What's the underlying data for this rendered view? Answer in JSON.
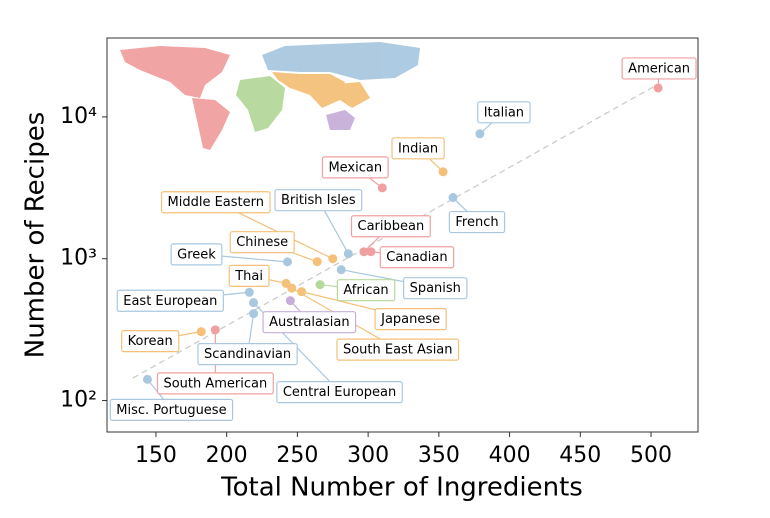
{
  "chart_data": {
    "type": "scatter",
    "x_label": "Total Number of Ingredients",
    "y_label": "Number of Recipes",
    "xlim": [
      115.4,
      533.2
    ],
    "xticks": [
      150,
      200,
      250,
      300,
      350,
      400,
      450,
      500
    ],
    "ylim": [
      60,
      36000
    ],
    "log_y": true,
    "yticks": [
      {
        "value": 100,
        "label": "10²"
      },
      {
        "value": 1000,
        "label": "10³"
      },
      {
        "value": 10000,
        "label": "10⁴"
      }
    ],
    "points": [
      {
        "label": "American",
        "x": 505,
        "y": 16000,
        "color": "#f0a0a0"
      },
      {
        "label": "Italian",
        "x": 379,
        "y": 7600,
        "color": "#a9c8e0"
      },
      {
        "label": "Indian",
        "x": 353,
        "y": 4100,
        "color": "#f4c07a"
      },
      {
        "label": "Mexican",
        "x": 310,
        "y": 3160,
        "color": "#f0a0a0"
      },
      {
        "label": "French",
        "x": 360,
        "y": 2700,
        "color": "#a9c8e0"
      },
      {
        "label": "British Isles",
        "x": 286,
        "y": 1085,
        "color": "#a9c8e0"
      },
      {
        "label": "Caribbean",
        "x": 297,
        "y": 1120,
        "color": "#f0a0a0"
      },
      {
        "label": "Canadian",
        "x": 302,
        "y": 1120,
        "color": "#f0a0a0"
      },
      {
        "label": "Middle Eastern",
        "x": 275,
        "y": 1000,
        "color": "#f4c07a"
      },
      {
        "label": "Chinese",
        "x": 264,
        "y": 953,
        "color": "#f4c07a"
      },
      {
        "label": "Greek",
        "x": 243,
        "y": 950,
        "color": "#a9c8e0"
      },
      {
        "label": "Spanish",
        "x": 281,
        "y": 837,
        "color": "#a9c8e0"
      },
      {
        "label": "African",
        "x": 266,
        "y": 656,
        "color": "#b5d99c"
      },
      {
        "label": "Thai",
        "x": 242,
        "y": 670,
        "color": "#f4c07a"
      },
      {
        "label": "Japanese",
        "x": 253,
        "y": 586,
        "color": "#f4c07a"
      },
      {
        "label": "South East Asian",
        "x": 246,
        "y": 620,
        "color": "#f4c07a"
      },
      {
        "label": "East European",
        "x": 216,
        "y": 580,
        "color": "#a9c8e0"
      },
      {
        "label": "Australasian",
        "x": 245,
        "y": 506,
        "color": "#c7afd9"
      },
      {
        "label": "Central European",
        "x": 219,
        "y": 490,
        "color": "#a9c8e0"
      },
      {
        "label": "Scandinavian",
        "x": 219,
        "y": 410,
        "color": "#a9c8e0"
      },
      {
        "label": "Korean",
        "x": 182,
        "y": 306,
        "color": "#f4c07a"
      },
      {
        "label": "South American",
        "x": 192,
        "y": 315,
        "color": "#f0a0a0"
      },
      {
        "label": "Misc. Portuguese",
        "x": 144,
        "y": 141,
        "color": "#a9c8e0"
      }
    ]
  }
}
